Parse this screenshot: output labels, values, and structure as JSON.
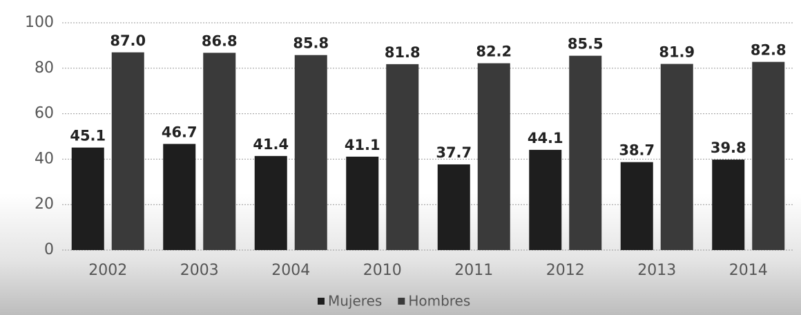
{
  "chart_data": {
    "type": "bar",
    "categories": [
      "2002",
      "2003",
      "2004",
      "2010",
      "2011",
      "2012",
      "2013",
      "2014"
    ],
    "series": [
      {
        "name": "Mujeres",
        "color": "#1e1e1e",
        "values": [
          45.1,
          46.7,
          41.4,
          41.1,
          37.7,
          44.1,
          38.7,
          39.8
        ],
        "value_labels": [
          "45.1",
          "46.7",
          "41.4",
          "41.1",
          "37.7",
          "44.1",
          "38.7",
          "39.8"
        ]
      },
      {
        "name": "Hombres",
        "color": "#3a3a3a",
        "values": [
          87.0,
          86.8,
          85.8,
          81.8,
          82.2,
          85.5,
          81.9,
          82.8
        ],
        "value_labels": [
          "87.0",
          "86.8",
          "85.8",
          "81.8",
          "82.2",
          "85.5",
          "81.9",
          "82.8"
        ]
      }
    ],
    "ylim": [
      0,
      100
    ],
    "yticks": [
      0,
      20,
      40,
      60,
      80,
      100
    ],
    "grid": true,
    "legend": "bottom"
  }
}
